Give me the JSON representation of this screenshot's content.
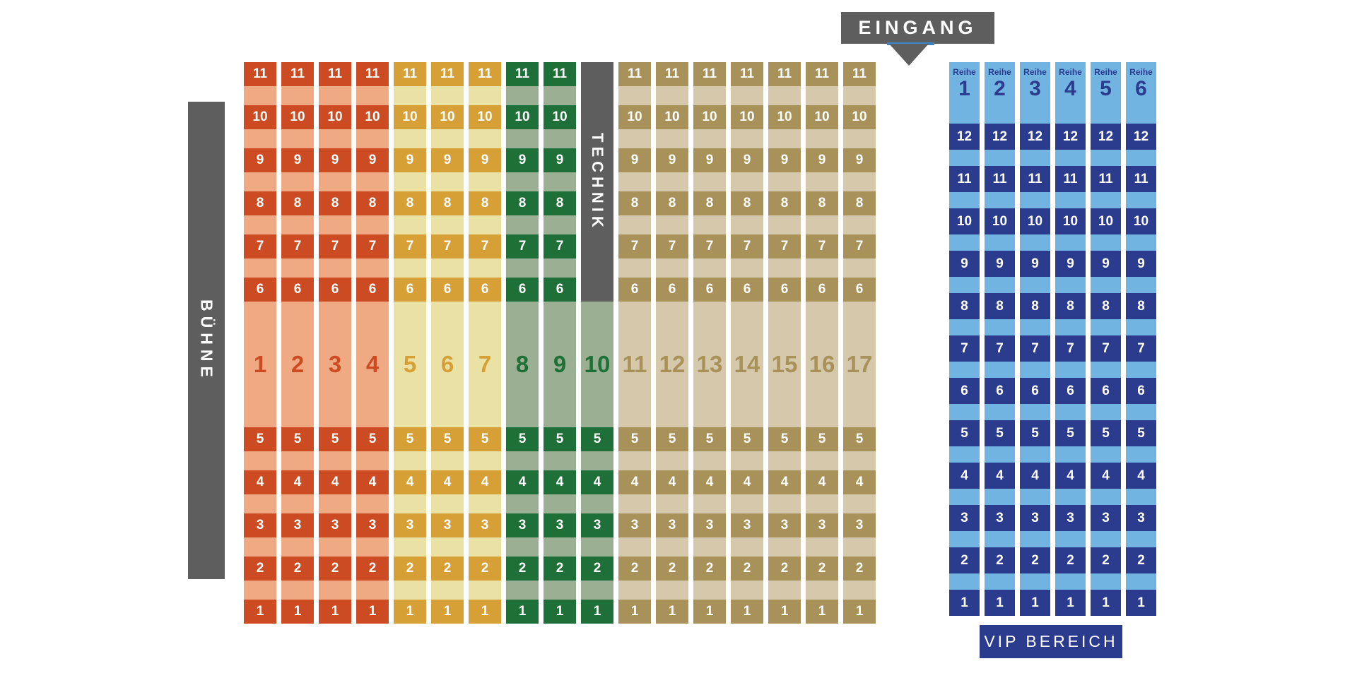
{
  "stage_label": "BÜHNE",
  "entrance_label": "EINGANG",
  "technik_label": "TECHNIK",
  "vip_area_label": "VIP BEREICH",
  "vip_row_header": "Reihe",
  "colors": {
    "background": "#ffffff",
    "gray_bar": "#5e5e5e",
    "cell_text": "#ffffff",
    "entrance_accent_blue": "#3d85c4",
    "vip_cell": "#2b3b8e",
    "vip_strip_bg": "#72b4e1",
    "vip_text_navy": "#2b3b8e"
  },
  "main_grid": {
    "sections": {
      "red": {
        "cell": "#cc4b22",
        "strip_bg": "#efa983"
      },
      "gold": {
        "cell": "#d7a037",
        "strip_bg": "#eae2a4"
      },
      "green": {
        "cell": "#1e7038",
        "strip_bg": "#9bb093"
      },
      "tan": {
        "cell": "#a8925a",
        "strip_bg": "#d6c9ab"
      }
    },
    "top_row_numbers": [
      11,
      10,
      9,
      8,
      7,
      6
    ],
    "bottom_row_numbers": [
      5,
      4,
      3,
      2,
      1
    ],
    "columns": [
      {
        "number": 1,
        "section": "red"
      },
      {
        "number": 2,
        "section": "red"
      },
      {
        "number": 3,
        "section": "red"
      },
      {
        "number": 4,
        "section": "red"
      },
      {
        "number": 5,
        "section": "gold"
      },
      {
        "number": 6,
        "section": "gold"
      },
      {
        "number": 7,
        "section": "gold"
      },
      {
        "number": 8,
        "section": "green"
      },
      {
        "number": 9,
        "section": "green"
      },
      {
        "number": 10,
        "section": "green",
        "technik": true
      },
      {
        "number": 11,
        "section": "tan"
      },
      {
        "number": 12,
        "section": "tan"
      },
      {
        "number": 13,
        "section": "tan"
      },
      {
        "number": 14,
        "section": "tan"
      },
      {
        "number": 15,
        "section": "tan"
      },
      {
        "number": 16,
        "section": "tan"
      },
      {
        "number": 17,
        "section": "tan"
      }
    ]
  },
  "vip_grid": {
    "column_numbers": [
      1,
      2,
      3,
      4,
      5,
      6
    ],
    "row_numbers": [
      12,
      11,
      10,
      9,
      8,
      7,
      6,
      5,
      4,
      3,
      2,
      1
    ]
  }
}
